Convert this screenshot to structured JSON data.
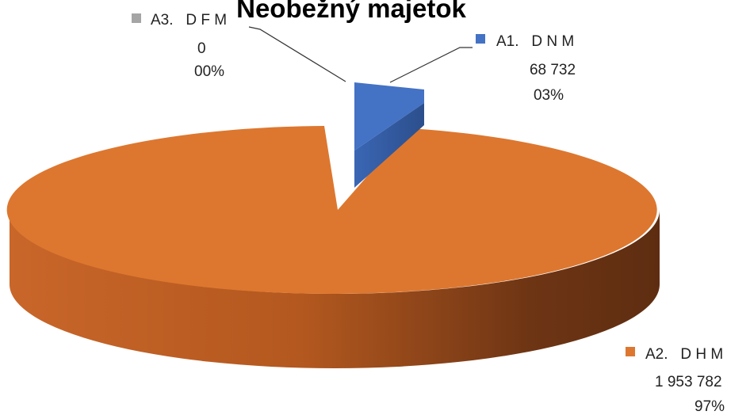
{
  "chart_data": {
    "type": "pie",
    "title": "Neobežný majetok",
    "style": "3d-exploded",
    "slices": [
      {
        "name": "A1.   D N M",
        "value": 68732,
        "value_label": "68 732",
        "percent_label": "03%",
        "color": "#4472c4"
      },
      {
        "name": "A2.   D H M",
        "value": 1953782,
        "value_label": "1 953 782",
        "percent_label": "97%",
        "color": "#dd772f"
      },
      {
        "name": "A3.   D F M",
        "value": 0,
        "value_label": "0",
        "percent_label": "00%",
        "color": "#a5a5a5"
      }
    ]
  }
}
